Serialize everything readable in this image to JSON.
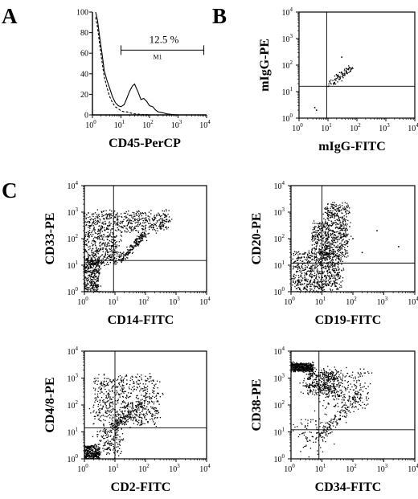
{
  "figure": {
    "panel_letters": [
      "A",
      "B",
      "C"
    ]
  },
  "chart_data": [
    {
      "type": "area",
      "panel": "A",
      "xlabel": "CD45-PerCP",
      "ylabel": "",
      "xscale": "log",
      "xlim": [
        1,
        10000
      ],
      "ylim": [
        0,
        100
      ],
      "x_ticks": [
        {
          "base": "10",
          "exp": "0"
        },
        {
          "base": "10",
          "exp": "1"
        },
        {
          "base": "10",
          "exp": "2"
        },
        {
          "base": "10",
          "exp": "3"
        },
        {
          "base": "10",
          "exp": "4"
        }
      ],
      "y_ticks": [
        "0",
        "20",
        "40",
        "60",
        "80",
        "100"
      ],
      "series": [
        {
          "style": "solid",
          "x": [
            1.3,
            1.5,
            1.8,
            2.2,
            2.6,
            3.2,
            4,
            5,
            6.3,
            8,
            10,
            13,
            16,
            20,
            25,
            30,
            40,
            50,
            63,
            80,
            100,
            130,
            160,
            200,
            300,
            400,
            600,
            1000
          ],
          "y": [
            100,
            92,
            75,
            58,
            43,
            34,
            26,
            18,
            12,
            9,
            8,
            10,
            16,
            23,
            28,
            30,
            22,
            15,
            16,
            13,
            9,
            8,
            5,
            3,
            2,
            1,
            0.5,
            0
          ]
        },
        {
          "style": "dashed",
          "x": [
            1.3,
            1.5,
            1.8,
            2.2,
            2.6,
            3.2,
            4,
            5,
            6.3,
            8,
            10,
            13,
            16,
            20,
            30,
            50,
            80,
            100
          ],
          "y": [
            95,
            85,
            68,
            50,
            37,
            27,
            18,
            12,
            8,
            6,
            4,
            3,
            3,
            2,
            1,
            0.5,
            0.3,
            0
          ]
        }
      ],
      "gate": {
        "label": "M1",
        "x_range": [
          10,
          8000
        ],
        "y": 63,
        "percent": "12.5 %"
      }
    },
    {
      "type": "scatter",
      "panel": "B",
      "xlabel": "mIgG-FITC",
      "ylabel": "mIgG-PE",
      "xscale": "log",
      "yscale": "log",
      "xlim": [
        1,
        10000
      ],
      "ylim": [
        1,
        10000
      ],
      "x_ticks": [
        {
          "base": "10",
          "exp": "0"
        },
        {
          "base": "10",
          "exp": "1"
        },
        {
          "base": "10",
          "exp": "2"
        },
        {
          "base": "10",
          "exp": "3"
        },
        {
          "base": "10",
          "exp": "4"
        }
      ],
      "y_ticks": [
        {
          "base": "10",
          "exp": "0"
        },
        {
          "base": "10",
          "exp": "1"
        },
        {
          "base": "10",
          "exp": "2"
        },
        {
          "base": "10",
          "exp": "3"
        },
        {
          "base": "10",
          "exp": "4"
        }
      ],
      "quadrant": {
        "x": 9,
        "y": 16
      },
      "populations": [
        {
          "kind": "diagonal",
          "x_range": [
            12,
            60
          ],
          "y_range": [
            18,
            80
          ],
          "spread": 0.07,
          "count": 90
        }
      ],
      "outliers": [
        [
          4,
          2
        ],
        [
          3.5,
          2.5
        ],
        [
          30,
          200
        ]
      ]
    },
    {
      "type": "scatter",
      "panel": "C",
      "xlabel": "CD14-FITC",
      "ylabel": "CD33-PE",
      "xscale": "log",
      "yscale": "log",
      "xlim": [
        1,
        10000
      ],
      "ylim": [
        1,
        10000
      ],
      "x_ticks": [
        {
          "base": "10",
          "exp": "0"
        },
        {
          "base": "10",
          "exp": "1"
        },
        {
          "base": "10",
          "exp": "2"
        },
        {
          "base": "10",
          "exp": "3"
        },
        {
          "base": "10",
          "exp": "4"
        }
      ],
      "y_ticks": [
        {
          "base": "10",
          "exp": "0"
        },
        {
          "base": "10",
          "exp": "1"
        },
        {
          "base": "10",
          "exp": "2"
        },
        {
          "base": "10",
          "exp": "3"
        },
        {
          "base": "10",
          "exp": "4"
        }
      ],
      "quadrant": {
        "x": 9,
        "y": 15
      },
      "populations": [
        {
          "kind": "cluster",
          "x_range": [
            1.1,
            600
          ],
          "y_range": [
            200,
            1000
          ],
          "spread": 0.15,
          "count": 500
        },
        {
          "kind": "cluster",
          "x_range": [
            1,
            12
          ],
          "y_range": [
            10,
            200
          ],
          "spread": 0.2,
          "count": 420
        },
        {
          "kind": "cluster",
          "x_range": [
            1,
            3
          ],
          "y_range": [
            1,
            15
          ],
          "spread": 0.1,
          "count": 320
        },
        {
          "kind": "diagonal",
          "x_range": [
            15,
            100
          ],
          "y_range": [
            15,
            150
          ],
          "spread": 0.06,
          "count": 180
        }
      ]
    },
    {
      "type": "scatter",
      "panel": "C",
      "xlabel": "CD19-FITC",
      "ylabel": "CD20-PE",
      "xscale": "log",
      "yscale": "log",
      "xlim": [
        1,
        10000
      ],
      "ylim": [
        1,
        10000
      ],
      "x_ticks": [
        {
          "base": "10",
          "exp": "0"
        },
        {
          "base": "10",
          "exp": "1"
        },
        {
          "base": "10",
          "exp": "2"
        },
        {
          "base": "10",
          "exp": "3"
        },
        {
          "base": "10",
          "exp": "4"
        }
      ],
      "y_ticks": [
        {
          "base": "10",
          "exp": "0"
        },
        {
          "base": "10",
          "exp": "1"
        },
        {
          "base": "10",
          "exp": "2"
        },
        {
          "base": "10",
          "exp": "3"
        },
        {
          "base": "10",
          "exp": "4"
        }
      ],
      "quadrant": {
        "x": 10,
        "y": 12
      },
      "populations": [
        {
          "kind": "cluster",
          "x_range": [
            1.2,
            40
          ],
          "y_range": [
            1.2,
            30
          ],
          "spread": 0.15,
          "count": 700
        },
        {
          "kind": "cluster",
          "x_range": [
            12,
            70
          ],
          "y_range": [
            20,
            2000
          ],
          "spread": 0.12,
          "count": 520
        },
        {
          "kind": "cluster",
          "x_range": [
            5,
            15
          ],
          "y_range": [
            20,
            400
          ],
          "spread": 0.1,
          "count": 200
        }
      ],
      "outliers": [
        [
          100,
          100
        ],
        [
          600,
          200
        ],
        [
          200,
          30
        ],
        [
          3000,
          50
        ]
      ]
    },
    {
      "type": "scatter",
      "panel": "C",
      "xlabel": "CD2-FITC",
      "ylabel": "CD4/8-PE",
      "xscale": "log",
      "yscale": "log",
      "xlim": [
        1,
        10000
      ],
      "ylim": [
        1,
        10000
      ],
      "x_ticks": [
        {
          "base": "10",
          "exp": "0"
        },
        {
          "base": "10",
          "exp": "1"
        },
        {
          "base": "10",
          "exp": "2"
        },
        {
          "base": "10",
          "exp": "3"
        },
        {
          "base": "10",
          "exp": "4"
        }
      ],
      "y_ticks": [
        {
          "base": "10",
          "exp": "0"
        },
        {
          "base": "10",
          "exp": "1"
        },
        {
          "base": "10",
          "exp": "2"
        },
        {
          "base": "10",
          "exp": "3"
        },
        {
          "base": "10",
          "exp": "4"
        }
      ],
      "quadrant": {
        "x": 10,
        "y": 14
      },
      "populations": [
        {
          "kind": "cluster",
          "x_range": [
            2,
            250
          ],
          "y_range": [
            20,
            1200
          ],
          "spread": 0.18,
          "count": 650
        },
        {
          "kind": "cluster",
          "x_range": [
            1,
            3
          ],
          "y_range": [
            1,
            3
          ],
          "spread": 0.08,
          "count": 300
        },
        {
          "kind": "diagonal",
          "x_range": [
            10,
            80
          ],
          "y_range": [
            15,
            120
          ],
          "spread": 0.08,
          "count": 140
        },
        {
          "kind": "cluster",
          "x_range": [
            3,
            15
          ],
          "y_range": [
            1.5,
            15
          ],
          "spread": 0.2,
          "count": 160
        }
      ]
    },
    {
      "type": "scatter",
      "panel": "C",
      "xlabel": "CD34-FITC",
      "ylabel": "CD38-PE",
      "xscale": "log",
      "yscale": "log",
      "xlim": [
        1,
        10000
      ],
      "ylim": [
        1,
        10000
      ],
      "x_ticks": [
        {
          "base": "10",
          "exp": "0"
        },
        {
          "base": "10",
          "exp": "1"
        },
        {
          "base": "10",
          "exp": "2"
        },
        {
          "base": "10",
          "exp": "3"
        },
        {
          "base": "10",
          "exp": "4"
        }
      ],
      "y_ticks": [
        {
          "base": "10",
          "exp": "0"
        },
        {
          "base": "10",
          "exp": "1"
        },
        {
          "base": "10",
          "exp": "2"
        },
        {
          "base": "10",
          "exp": "3"
        },
        {
          "base": "10",
          "exp": "4"
        }
      ],
      "quadrant": {
        "x": 8,
        "y": 12
      },
      "populations": [
        {
          "kind": "cluster",
          "x_range": [
            1,
            5
          ],
          "y_range": [
            1800,
            3500
          ],
          "spread": 0.05,
          "count": 420
        },
        {
          "kind": "cluster",
          "x_range": [
            3,
            30
          ],
          "y_range": [
            250,
            1800
          ],
          "spread": 0.2,
          "count": 380
        },
        {
          "kind": "cluster",
          "x_range": [
            10,
            300
          ],
          "y_range": [
            80,
            2000
          ],
          "spread": 0.2,
          "count": 220
        },
        {
          "kind": "diagonal",
          "x_range": [
            10,
            200
          ],
          "y_range": [
            8,
            300
          ],
          "spread": 0.1,
          "count": 170
        },
        {
          "kind": "cluster",
          "x_range": [
            2,
            12
          ],
          "y_range": [
            2,
            40
          ],
          "spread": 0.25,
          "count": 80
        }
      ]
    }
  ]
}
